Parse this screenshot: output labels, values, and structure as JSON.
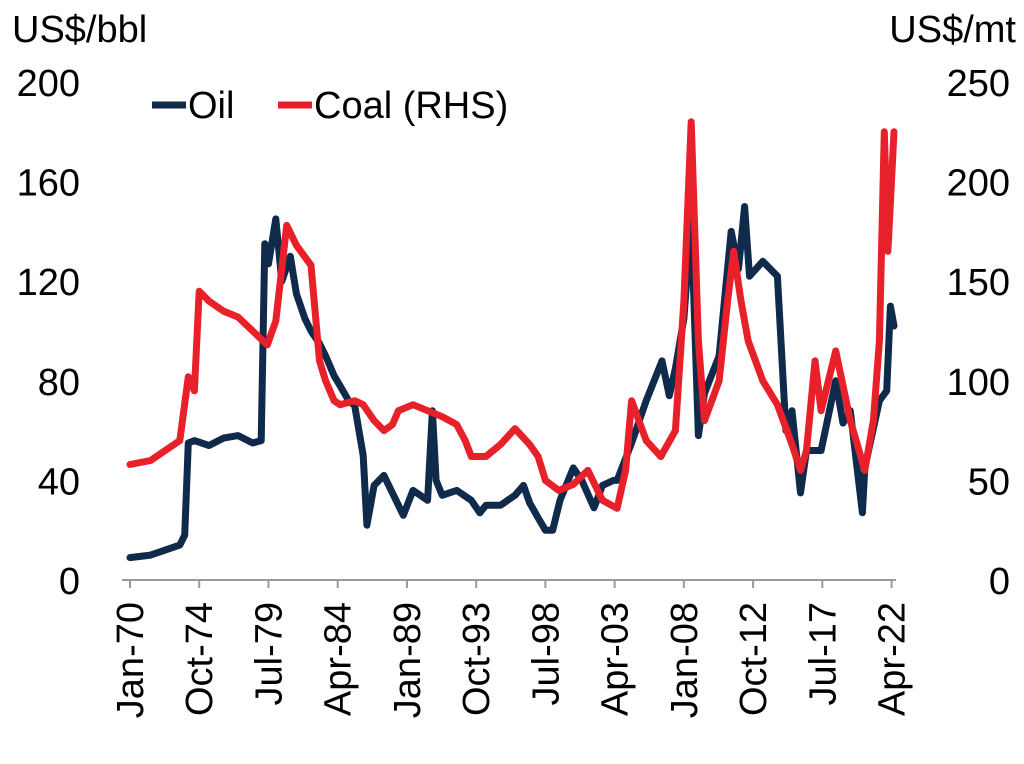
{
  "chart_data": {
    "type": "line",
    "title": "",
    "ylabel_left": "US$/bbl",
    "ylabel_right": "US$/mt",
    "y_left_range": [
      0,
      200
    ],
    "y_right_range": [
      0,
      250
    ],
    "y_left_ticks": [
      "0",
      "40",
      "80",
      "120",
      "160",
      "200"
    ],
    "y_right_ticks": [
      "0",
      "50",
      "100",
      "150",
      "200",
      "250"
    ],
    "x_range": [
      "1970-01",
      "2022-06"
    ],
    "x_ticks": [
      {
        "label": "Jan-70",
        "date": "1970-01"
      },
      {
        "label": "Oct-74",
        "date": "1974-10"
      },
      {
        "label": "Jul-79",
        "date": "1979-07"
      },
      {
        "label": "Apr-84",
        "date": "1984-04"
      },
      {
        "label": "Jan-89",
        "date": "1989-01"
      },
      {
        "label": "Oct-93",
        "date": "1993-10"
      },
      {
        "label": "Jul-98",
        "date": "1998-07"
      },
      {
        "label": "Apr-03",
        "date": "2003-04"
      },
      {
        "label": "Jan-08",
        "date": "2008-01"
      },
      {
        "label": "Oct-12",
        "date": "2012-10"
      },
      {
        "label": "Jul-17",
        "date": "2017-07"
      },
      {
        "label": "Apr-22",
        "date": "2022-04"
      }
    ],
    "grid": false,
    "legend": "top-left",
    "series": [
      {
        "name": "Oil",
        "axis": "left",
        "color": "#0f2a4a",
        "points": [
          [
            "1970-01",
            9
          ],
          [
            "1971-06",
            10
          ],
          [
            "1972-06",
            12
          ],
          [
            "1973-06",
            14
          ],
          [
            "1973-10",
            18
          ],
          [
            "1974-01",
            55
          ],
          [
            "1974-06",
            56
          ],
          [
            "1975-06",
            54
          ],
          [
            "1976-06",
            57
          ],
          [
            "1977-06",
            58
          ],
          [
            "1978-06",
            55
          ],
          [
            "1979-01",
            56
          ],
          [
            "1979-04",
            135
          ],
          [
            "1979-07",
            127
          ],
          [
            "1980-01",
            145
          ],
          [
            "1980-06",
            120
          ],
          [
            "1981-01",
            130
          ],
          [
            "1981-06",
            115
          ],
          [
            "1982-01",
            105
          ],
          [
            "1982-06",
            100
          ],
          [
            "1983-01",
            95
          ],
          [
            "1983-06",
            90
          ],
          [
            "1984-01",
            82
          ],
          [
            "1984-06",
            78
          ],
          [
            "1985-01",
            72
          ],
          [
            "1985-06",
            70
          ],
          [
            "1986-01",
            50
          ],
          [
            "1986-04",
            22
          ],
          [
            "1986-10",
            38
          ],
          [
            "1987-06",
            42
          ],
          [
            "1988-01",
            35
          ],
          [
            "1988-10",
            26
          ],
          [
            "1989-06",
            36
          ],
          [
            "1990-06",
            32
          ],
          [
            "1990-10",
            68
          ],
          [
            "1991-01",
            40
          ],
          [
            "1991-06",
            34
          ],
          [
            "1992-06",
            36
          ],
          [
            "1993-06",
            32
          ],
          [
            "1994-01",
            27
          ],
          [
            "1994-06",
            30
          ],
          [
            "1995-06",
            30
          ],
          [
            "1996-06",
            34
          ],
          [
            "1997-01",
            38
          ],
          [
            "1997-06",
            31
          ],
          [
            "1998-01",
            25
          ],
          [
            "1998-07",
            20
          ],
          [
            "1999-01",
            20
          ],
          [
            "1999-07",
            32
          ],
          [
            "2000-06",
            45
          ],
          [
            "2001-01",
            40
          ],
          [
            "2001-11",
            29
          ],
          [
            "2002-06",
            38
          ],
          [
            "2003-03",
            40
          ],
          [
            "2003-06",
            40
          ],
          [
            "2004-06",
            55
          ],
          [
            "2005-06",
            72
          ],
          [
            "2006-07",
            88
          ],
          [
            "2007-01",
            74
          ],
          [
            "2007-06",
            85
          ],
          [
            "2008-01",
            105
          ],
          [
            "2008-07",
            145
          ],
          [
            "2009-01",
            58
          ],
          [
            "2009-06",
            75
          ],
          [
            "2010-06",
            90
          ],
          [
            "2011-04",
            140
          ],
          [
            "2011-10",
            125
          ],
          [
            "2012-03",
            150
          ],
          [
            "2012-07",
            122
          ],
          [
            "2013-06",
            128
          ],
          [
            "2014-06",
            122
          ],
          [
            "2015-01",
            60
          ],
          [
            "2015-06",
            68
          ],
          [
            "2016-01",
            35
          ],
          [
            "2016-06",
            52
          ],
          [
            "2017-06",
            52
          ],
          [
            "2018-06",
            80
          ],
          [
            "2018-12",
            63
          ],
          [
            "2019-06",
            68
          ],
          [
            "2020-04",
            27
          ],
          [
            "2020-06",
            45
          ],
          [
            "2021-06",
            72
          ],
          [
            "2021-12",
            76
          ],
          [
            "2022-03",
            110
          ],
          [
            "2022-06",
            102
          ]
        ]
      },
      {
        "name": "Coal (RHS)",
        "axis": "right",
        "color": "#e8202a",
        "points": [
          [
            "1970-01",
            58
          ],
          [
            "1971-06",
            60
          ],
          [
            "1972-06",
            65
          ],
          [
            "1973-06",
            70
          ],
          [
            "1974-01",
            102
          ],
          [
            "1974-06",
            95
          ],
          [
            "1974-10",
            145
          ],
          [
            "1975-06",
            140
          ],
          [
            "1976-06",
            135
          ],
          [
            "1977-06",
            132
          ],
          [
            "1978-06",
            125
          ],
          [
            "1979-06",
            118
          ],
          [
            "1980-01",
            130
          ],
          [
            "1980-10",
            178
          ],
          [
            "1981-06",
            168
          ],
          [
            "1982-06",
            158
          ],
          [
            "1983-01",
            110
          ],
          [
            "1983-06",
            100
          ],
          [
            "1984-01",
            90
          ],
          [
            "1984-06",
            88
          ],
          [
            "1985-06",
            90
          ],
          [
            "1986-01",
            88
          ],
          [
            "1986-10",
            80
          ],
          [
            "1987-06",
            75
          ],
          [
            "1988-01",
            78
          ],
          [
            "1988-06",
            85
          ],
          [
            "1989-06",
            88
          ],
          [
            "1990-06",
            85
          ],
          [
            "1991-06",
            82
          ],
          [
            "1992-06",
            78
          ],
          [
            "1993-01",
            70
          ],
          [
            "1993-06",
            62
          ],
          [
            "1994-06",
            62
          ],
          [
            "1995-06",
            68
          ],
          [
            "1996-06",
            76
          ],
          [
            "1997-06",
            68
          ],
          [
            "1998-01",
            62
          ],
          [
            "1998-07",
            50
          ],
          [
            "1999-06",
            45
          ],
          [
            "2000-06",
            48
          ],
          [
            "2001-06",
            55
          ],
          [
            "2002-06",
            40
          ],
          [
            "2003-06",
            36
          ],
          [
            "2004-01",
            55
          ],
          [
            "2004-06",
            90
          ],
          [
            "2005-06",
            70
          ],
          [
            "2006-06",
            62
          ],
          [
            "2007-06",
            75
          ],
          [
            "2008-01",
            140
          ],
          [
            "2008-07",
            230
          ],
          [
            "2009-01",
            120
          ],
          [
            "2009-06",
            80
          ],
          [
            "2010-06",
            100
          ],
          [
            "2011-01",
            140
          ],
          [
            "2011-06",
            165
          ],
          [
            "2011-12",
            140
          ],
          [
            "2012-06",
            120
          ],
          [
            "2013-06",
            100
          ],
          [
            "2014-06",
            88
          ],
          [
            "2015-06",
            68
          ],
          [
            "2016-01",
            55
          ],
          [
            "2016-06",
            65
          ],
          [
            "2017-01",
            110
          ],
          [
            "2017-06",
            85
          ],
          [
            "2018-06",
            115
          ],
          [
            "2019-06",
            80
          ],
          [
            "2020-06",
            55
          ],
          [
            "2021-01",
            80
          ],
          [
            "2021-06",
            120
          ],
          [
            "2021-10",
            225
          ],
          [
            "2022-01",
            165
          ],
          [
            "2022-06",
            225
          ]
        ]
      }
    ]
  }
}
